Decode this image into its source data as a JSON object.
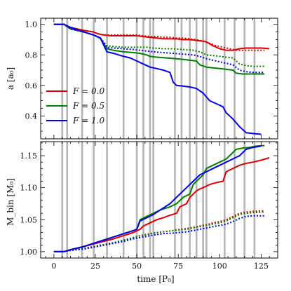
{
  "chart_data": [
    {
      "type": "line",
      "panel": "top",
      "ylabel": "a [a₀]",
      "xlim": [
        -8,
        135
      ],
      "ylim": [
        0.25,
        1.04
      ],
      "yticks": [
        0.4,
        0.6,
        0.8,
        1.0
      ],
      "ytick_labels": [
        "0.4",
        "0.6",
        "0.8",
        "1.0"
      ],
      "xticks": [
        0,
        25,
        50,
        75,
        100,
        125
      ],
      "legend": {
        "placement": "lower-left",
        "entries": [
          {
            "label": "F = 0.0",
            "color": "#e00000"
          },
          {
            "label": "F = 0.5",
            "color": "#008000"
          },
          {
            "label": "F = 1.0",
            "color": "#0000ee"
          }
        ]
      },
      "vlines": [
        5,
        8,
        17,
        24,
        32,
        42,
        50,
        54,
        58,
        60,
        73,
        77,
        82,
        86,
        90,
        92,
        103,
        109,
        115,
        121
      ],
      "series": [
        {
          "color": "#e00000",
          "style": "solid",
          "x": [
            0,
            6,
            10,
            18,
            24,
            26,
            30,
            34,
            40,
            46,
            50,
            54,
            58,
            62,
            66,
            70,
            74,
            78,
            82,
            86,
            90,
            92,
            96,
            100,
            104,
            108,
            112,
            116,
            120,
            125,
            130
          ],
          "y": [
            1.0,
            1.0,
            0.98,
            0.96,
            0.95,
            0.94,
            0.93,
            0.925,
            0.925,
            0.925,
            0.925,
            0.92,
            0.915,
            0.91,
            0.905,
            0.905,
            0.905,
            0.9,
            0.9,
            0.895,
            0.89,
            0.885,
            0.86,
            0.84,
            0.83,
            0.83,
            0.84,
            0.845,
            0.845,
            0.845,
            0.84
          ]
        },
        {
          "color": "#e00000",
          "style": "dotted",
          "x": [
            0,
            6,
            10,
            18,
            24,
            26,
            30,
            34,
            40,
            46,
            50,
            54,
            58,
            62,
            66,
            70,
            74,
            78,
            82,
            86,
            90,
            94,
            98,
            102,
            106,
            110,
            114,
            118,
            122,
            127
          ],
          "y": [
            1.0,
            1.0,
            0.98,
            0.96,
            0.95,
            0.94,
            0.93,
            0.93,
            0.93,
            0.93,
            0.93,
            0.925,
            0.92,
            0.92,
            0.915,
            0.915,
            0.91,
            0.91,
            0.905,
            0.9,
            0.89,
            0.875,
            0.86,
            0.85,
            0.84,
            0.83,
            0.83,
            0.83,
            0.83,
            0.83
          ]
        },
        {
          "color": "#008000",
          "style": "solid",
          "x": [
            0,
            6,
            10,
            18,
            24,
            28,
            32,
            36,
            42,
            48,
            52,
            56,
            58,
            62,
            68,
            74,
            78,
            82,
            86,
            88,
            92,
            96,
            100,
            104,
            108,
            110,
            114,
            118,
            122,
            127
          ],
          "y": [
            1.0,
            1.0,
            0.97,
            0.95,
            0.93,
            0.91,
            0.84,
            0.83,
            0.82,
            0.815,
            0.81,
            0.8,
            0.79,
            0.785,
            0.78,
            0.775,
            0.77,
            0.765,
            0.76,
            0.735,
            0.72,
            0.715,
            0.71,
            0.705,
            0.7,
            0.68,
            0.675,
            0.675,
            0.675,
            0.675
          ]
        },
        {
          "color": "#008000",
          "style": "dotted",
          "x": [
            0,
            6,
            10,
            18,
            24,
            28,
            32,
            36,
            42,
            48,
            52,
            56,
            60,
            66,
            72,
            78,
            84,
            88,
            92,
            96,
            100,
            104,
            108,
            112,
            116,
            120,
            127
          ],
          "y": [
            1.0,
            1.0,
            0.97,
            0.95,
            0.93,
            0.91,
            0.86,
            0.855,
            0.85,
            0.85,
            0.85,
            0.85,
            0.845,
            0.84,
            0.84,
            0.835,
            0.83,
            0.82,
            0.8,
            0.795,
            0.79,
            0.785,
            0.78,
            0.74,
            0.73,
            0.725,
            0.725
          ]
        },
        {
          "color": "#0000ee",
          "style": "solid",
          "x": [
            0,
            6,
            10,
            18,
            24,
            28,
            32,
            36,
            42,
            46,
            50,
            54,
            58,
            62,
            66,
            70,
            72,
            74,
            78,
            82,
            86,
            90,
            94,
            98,
            102,
            104,
            108,
            112,
            116,
            120,
            125
          ],
          "y": [
            1.0,
            1.0,
            0.98,
            0.95,
            0.93,
            0.91,
            0.82,
            0.81,
            0.79,
            0.78,
            0.76,
            0.74,
            0.72,
            0.71,
            0.7,
            0.685,
            0.62,
            0.6,
            0.595,
            0.59,
            0.58,
            0.55,
            0.5,
            0.48,
            0.46,
            0.42,
            0.38,
            0.33,
            0.29,
            0.285,
            0.28
          ]
        },
        {
          "color": "#0000ee",
          "style": "dotted",
          "x": [
            0,
            6,
            10,
            18,
            24,
            28,
            32,
            36,
            42,
            48,
            52,
            56,
            60,
            66,
            72,
            78,
            84,
            88,
            92,
            96,
            100,
            104,
            108,
            112,
            116,
            120,
            127
          ],
          "y": [
            1.0,
            1.0,
            0.97,
            0.95,
            0.93,
            0.91,
            0.85,
            0.845,
            0.84,
            0.835,
            0.83,
            0.825,
            0.82,
            0.815,
            0.81,
            0.805,
            0.8,
            0.79,
            0.775,
            0.765,
            0.755,
            0.745,
            0.735,
            0.7,
            0.69,
            0.685,
            0.685
          ]
        }
      ]
    },
    {
      "type": "line",
      "panel": "bottom",
      "ylabel": "M_bin [M₀]",
      "xlabel": "time [P₀]",
      "xlim": [
        -8,
        135
      ],
      "ylim": [
        0.99,
        1.172
      ],
      "yticks": [
        1.0,
        1.05,
        1.1,
        1.15
      ],
      "ytick_labels": [
        "1.00",
        "1.05",
        "1.10",
        "1.15"
      ],
      "xticks": [
        0,
        25,
        50,
        75,
        100,
        125
      ],
      "xtick_labels": [
        "0",
        "25",
        "50",
        "75",
        "100",
        "125"
      ],
      "vlines": [
        5,
        8,
        17,
        24,
        32,
        42,
        50,
        54,
        58,
        60,
        73,
        77,
        82,
        86,
        90,
        92,
        103,
        109,
        115,
        121
      ],
      "series": [
        {
          "color": "#e00000",
          "style": "solid",
          "x": [
            0,
            6,
            10,
            18,
            24,
            30,
            36,
            42,
            48,
            52,
            54,
            58,
            62,
            66,
            70,
            74,
            76,
            80,
            82,
            84,
            86,
            88,
            90,
            94,
            98,
            102,
            104,
            108,
            112,
            116,
            120,
            125,
            130
          ],
          "y": [
            1.0,
            1.0,
            1.003,
            1.008,
            1.012,
            1.016,
            1.02,
            1.025,
            1.03,
            1.035,
            1.04,
            1.045,
            1.05,
            1.053,
            1.057,
            1.06,
            1.07,
            1.075,
            1.085,
            1.09,
            1.095,
            1.098,
            1.1,
            1.105,
            1.108,
            1.11,
            1.125,
            1.13,
            1.135,
            1.138,
            1.14,
            1.143,
            1.147
          ]
        },
        {
          "color": "#e00000",
          "style": "dotted",
          "x": [
            0,
            6,
            10,
            18,
            24,
            30,
            36,
            42,
            48,
            52,
            56,
            60,
            66,
            72,
            76,
            80,
            84,
            88,
            92,
            96,
            100,
            104,
            108,
            112,
            116,
            120,
            127
          ],
          "y": [
            1.0,
            1.0,
            1.002,
            1.005,
            1.008,
            1.011,
            1.014,
            1.018,
            1.022,
            1.025,
            1.027,
            1.029,
            1.031,
            1.033,
            1.035,
            1.036,
            1.038,
            1.04,
            1.042,
            1.045,
            1.047,
            1.05,
            1.055,
            1.06,
            1.062,
            1.063,
            1.064
          ]
        },
        {
          "color": "#008000",
          "style": "solid",
          "x": [
            0,
            6,
            10,
            18,
            24,
            30,
            36,
            42,
            48,
            50,
            52,
            56,
            60,
            64,
            70,
            74,
            78,
            82,
            84,
            86,
            88,
            90,
            92,
            96,
            100,
            104,
            108,
            110,
            114,
            118,
            122,
            127
          ],
          "y": [
            1.0,
            1.0,
            1.003,
            1.008,
            1.013,
            1.018,
            1.023,
            1.028,
            1.033,
            1.035,
            1.05,
            1.055,
            1.06,
            1.065,
            1.07,
            1.075,
            1.085,
            1.09,
            1.105,
            1.11,
            1.115,
            1.12,
            1.13,
            1.135,
            1.14,
            1.145,
            1.155,
            1.16,
            1.162,
            1.163,
            1.165,
            1.166
          ]
        },
        {
          "color": "#008000",
          "style": "dotted",
          "x": [
            0,
            6,
            10,
            18,
            24,
            30,
            36,
            42,
            48,
            52,
            56,
            60,
            66,
            72,
            76,
            80,
            84,
            88,
            92,
            96,
            100,
            104,
            108,
            112,
            116,
            120,
            127
          ],
          "y": [
            1.0,
            1.0,
            1.002,
            1.005,
            1.008,
            1.011,
            1.014,
            1.018,
            1.022,
            1.025,
            1.027,
            1.029,
            1.031,
            1.033,
            1.034,
            1.035,
            1.037,
            1.039,
            1.041,
            1.043,
            1.045,
            1.048,
            1.053,
            1.058,
            1.06,
            1.061,
            1.062
          ]
        },
        {
          "color": "#0000ee",
          "style": "solid",
          "x": [
            0,
            6,
            10,
            18,
            24,
            30,
            36,
            42,
            48,
            50,
            52,
            56,
            60,
            64,
            70,
            72,
            74,
            78,
            82,
            84,
            86,
            88,
            92,
            96,
            100,
            104,
            108,
            112,
            116,
            120,
            125
          ],
          "y": [
            1.0,
            1.0,
            1.003,
            1.008,
            1.013,
            1.018,
            1.023,
            1.028,
            1.033,
            1.035,
            1.048,
            1.053,
            1.058,
            1.065,
            1.075,
            1.08,
            1.085,
            1.095,
            1.105,
            1.11,
            1.115,
            1.12,
            1.125,
            1.13,
            1.135,
            1.14,
            1.145,
            1.15,
            1.16,
            1.163,
            1.165
          ]
        },
        {
          "color": "#0000ee",
          "style": "dotted",
          "x": [
            0,
            6,
            10,
            18,
            24,
            30,
            36,
            42,
            48,
            52,
            56,
            60,
            66,
            72,
            76,
            80,
            84,
            88,
            92,
            96,
            100,
            104,
            108,
            112,
            116,
            120,
            127
          ],
          "y": [
            1.0,
            1.0,
            1.002,
            1.004,
            1.007,
            1.01,
            1.013,
            1.016,
            1.02,
            1.022,
            1.024,
            1.026,
            1.028,
            1.029,
            1.03,
            1.031,
            1.033,
            1.035,
            1.037,
            1.039,
            1.041,
            1.043,
            1.047,
            1.052,
            1.055,
            1.056,
            1.056
          ]
        }
      ]
    }
  ]
}
